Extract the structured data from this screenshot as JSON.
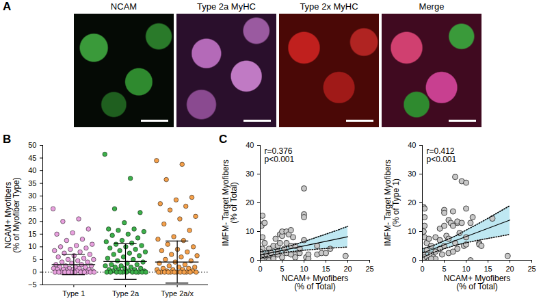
{
  "chart_data": [
    {
      "panel": "A",
      "type": "image",
      "titles": [
        "NCAM",
        "Type 2a MyHC",
        "Type 2x MyHC",
        "Merge"
      ]
    },
    {
      "panel": "B",
      "type": "scatter",
      "ylabel": "NCAM+ Myofibers (% of Myofiber Type)",
      "categories": [
        "Type 1",
        "Type 2a",
        "Type 2a/x"
      ],
      "colors": [
        "#e8a0de",
        "#3cb04a",
        "#f5a04a"
      ],
      "values": [
        [
          25,
          21,
          20,
          17,
          15.5,
          15,
          13,
          12.5,
          11,
          10.5,
          10,
          9.5,
          9,
          8.5,
          8,
          7.5,
          7,
          6.5,
          6,
          5.5,
          5,
          5,
          4.5,
          4,
          4,
          3.5,
          3,
          3,
          2.5,
          2.5,
          2,
          2,
          2,
          1.5,
          1.5,
          1.5,
          1,
          1,
          1,
          1,
          0.5,
          0.5,
          0.5,
          0.5,
          0,
          0,
          0,
          0,
          0,
          0,
          0,
          0,
          0,
          0,
          0,
          0
        ],
        [
          46.5,
          37,
          25,
          23.5,
          19.5,
          17,
          17,
          16.5,
          16,
          15,
          14.5,
          13.5,
          12.5,
          12,
          11.5,
          11,
          10.5,
          10,
          9.5,
          9,
          8.5,
          8,
          7.5,
          7,
          6.5,
          6,
          5.5,
          5,
          4.5,
          4,
          3.5,
          3,
          3,
          2.5,
          2.5,
          2,
          2,
          1.5,
          1.5,
          1,
          1,
          1,
          0.5,
          0.5,
          0.5,
          0,
          0,
          0,
          0,
          0,
          0,
          0,
          0,
          0,
          0,
          0
        ],
        [
          44,
          42.5,
          36.5,
          29.5,
          28.5,
          27,
          26,
          24.5,
          22,
          21,
          19,
          16.5,
          14,
          13,
          12.5,
          11,
          10,
          9,
          8.5,
          8,
          7,
          6.5,
          6,
          5,
          4.5,
          4,
          3.5,
          3,
          2.5,
          2,
          2,
          1.5,
          1.5,
          1,
          1,
          1,
          0.5,
          0.5,
          0,
          0,
          0,
          0,
          0,
          0,
          0,
          0,
          0,
          0,
          0,
          0
        ]
      ],
      "mean": [
        3,
        4.2,
        4
      ],
      "sd": [
        4,
        7,
        8.3
      ],
      "ylim": [
        -5,
        50
      ],
      "yticks": [
        -5,
        0,
        5,
        10,
        15,
        20,
        25,
        30,
        35,
        40,
        45,
        50
      ]
    },
    {
      "panel": "C",
      "type": "scatter",
      "xlabel": "NCAM+ Myofibers (% of Total)",
      "ylabel": "IMFM- Target Myofibers (% of Total)",
      "annotations": [
        "r=0.376",
        "p<0.001"
      ],
      "color": "#c8c8c8",
      "x": [
        0.3,
        0.3,
        0.5,
        1,
        0.5,
        1,
        0.5,
        0,
        0.2,
        0.5,
        0,
        1,
        1.5,
        2,
        2,
        2.5,
        3,
        3,
        3.5,
        4,
        4,
        4.5,
        4.5,
        5,
        5,
        5.5,
        6,
        6,
        6,
        6.5,
        7,
        7,
        7.5,
        8,
        8,
        9,
        9,
        10,
        10,
        10,
        10,
        10.5,
        11,
        11,
        13,
        13,
        14,
        15,
        16,
        19.5,
        1.5,
        2,
        0.5,
        3,
        4,
        5,
        7,
        8
      ],
      "values": [
        12.5,
        12,
        15.5,
        13,
        8,
        6,
        4,
        3,
        2,
        1,
        0.5,
        0.3,
        2,
        1,
        4,
        2.5,
        1,
        5,
        7.5,
        5,
        3,
        6,
        9,
        8.5,
        10,
        4,
        10,
        6,
        2.5,
        9,
        10.5,
        5,
        8,
        5,
        2,
        2.5,
        4,
        16,
        15,
        25,
        7,
        1,
        2,
        0.5,
        5,
        2,
        2.5,
        2.5,
        4,
        1.5,
        0,
        0,
        0,
        0.5,
        2,
        1,
        2,
        1
      ],
      "fit": {
        "x": [
          0,
          20
        ],
        "y": [
          1.8,
          8.2
        ]
      },
      "ci": {
        "x": [
          0,
          2.5,
          5,
          7.5,
          10,
          12.5,
          15,
          17.5,
          20
        ],
        "lower": [
          0.6,
          1.7,
          2.5,
          3.1,
          3.5,
          3.8,
          4.1,
          4.4,
          4.6
        ],
        "upper": [
          3.0,
          3.5,
          4.3,
          5.3,
          6.5,
          7.8,
          9.1,
          10.4,
          11.8
        ]
      },
      "xlim": [
        0,
        25
      ],
      "xticks": [
        0,
        5,
        10,
        15,
        20,
        25
      ],
      "ylim": [
        0,
        40
      ],
      "yticks": [
        0,
        10,
        20,
        30,
        40
      ]
    },
    {
      "type": "scatter",
      "xlabel": "NCAM+ Myofibers (% of Total)",
      "ylabel": "IMFM- Target Myofibers (% of Type 1)",
      "annotations": [
        "r=0.412",
        "p<0.001"
      ],
      "color": "#c8c8c8",
      "x": [
        0.3,
        0.5,
        0.5,
        0.5,
        0.3,
        0.5,
        1,
        1,
        0.2,
        0.5,
        0,
        1.5,
        2,
        2,
        2.5,
        3,
        3,
        3,
        4,
        4,
        4.5,
        5,
        5,
        5,
        5,
        5.5,
        6,
        6,
        6,
        6.5,
        7,
        7,
        7.5,
        7.5,
        8,
        8,
        8,
        9,
        9,
        9.5,
        10,
        10,
        10,
        10,
        11,
        11,
        11.5,
        13,
        13,
        13.5,
        16,
        19.5,
        1.5,
        2,
        4,
        7,
        8.5
      ],
      "values": [
        18.5,
        18,
        15,
        12,
        10,
        8,
        6,
        3.5,
        2,
        1,
        0.3,
        7.5,
        5,
        2,
        1,
        8,
        3,
        0.5,
        11,
        7,
        2,
        17.5,
        16.5,
        12,
        5,
        8.5,
        14,
        7.5,
        2.5,
        13,
        17,
        12,
        29,
        6,
        13,
        4,
        13.5,
        27.5,
        13,
        5,
        27,
        18,
        8,
        5.5,
        13,
        0,
        15,
        6,
        5.5,
        5,
        14.5,
        1.5,
        0,
        0.5,
        4,
        3,
        9.5
      ],
      "fit": {
        "x": [
          0,
          20
        ],
        "y": [
          2.5,
          14.0
        ]
      },
      "ci": {
        "x": [
          0,
          2.5,
          5,
          7.5,
          10,
          12.5,
          15,
          17.5,
          20
        ],
        "lower": [
          1.0,
          2.7,
          4.0,
          5.2,
          6.1,
          6.9,
          7.6,
          8.3,
          9.0
        ],
        "upper": [
          4.0,
          5.1,
          6.8,
          8.4,
          10.5,
          12.5,
          14.6,
          16.8,
          19.0
        ]
      },
      "xlim": [
        0,
        25
      ],
      "xticks": [
        0,
        5,
        10,
        15,
        20,
        25
      ],
      "ylim": [
        0,
        40
      ],
      "yticks": [
        0,
        10,
        20,
        30,
        40
      ]
    }
  ]
}
